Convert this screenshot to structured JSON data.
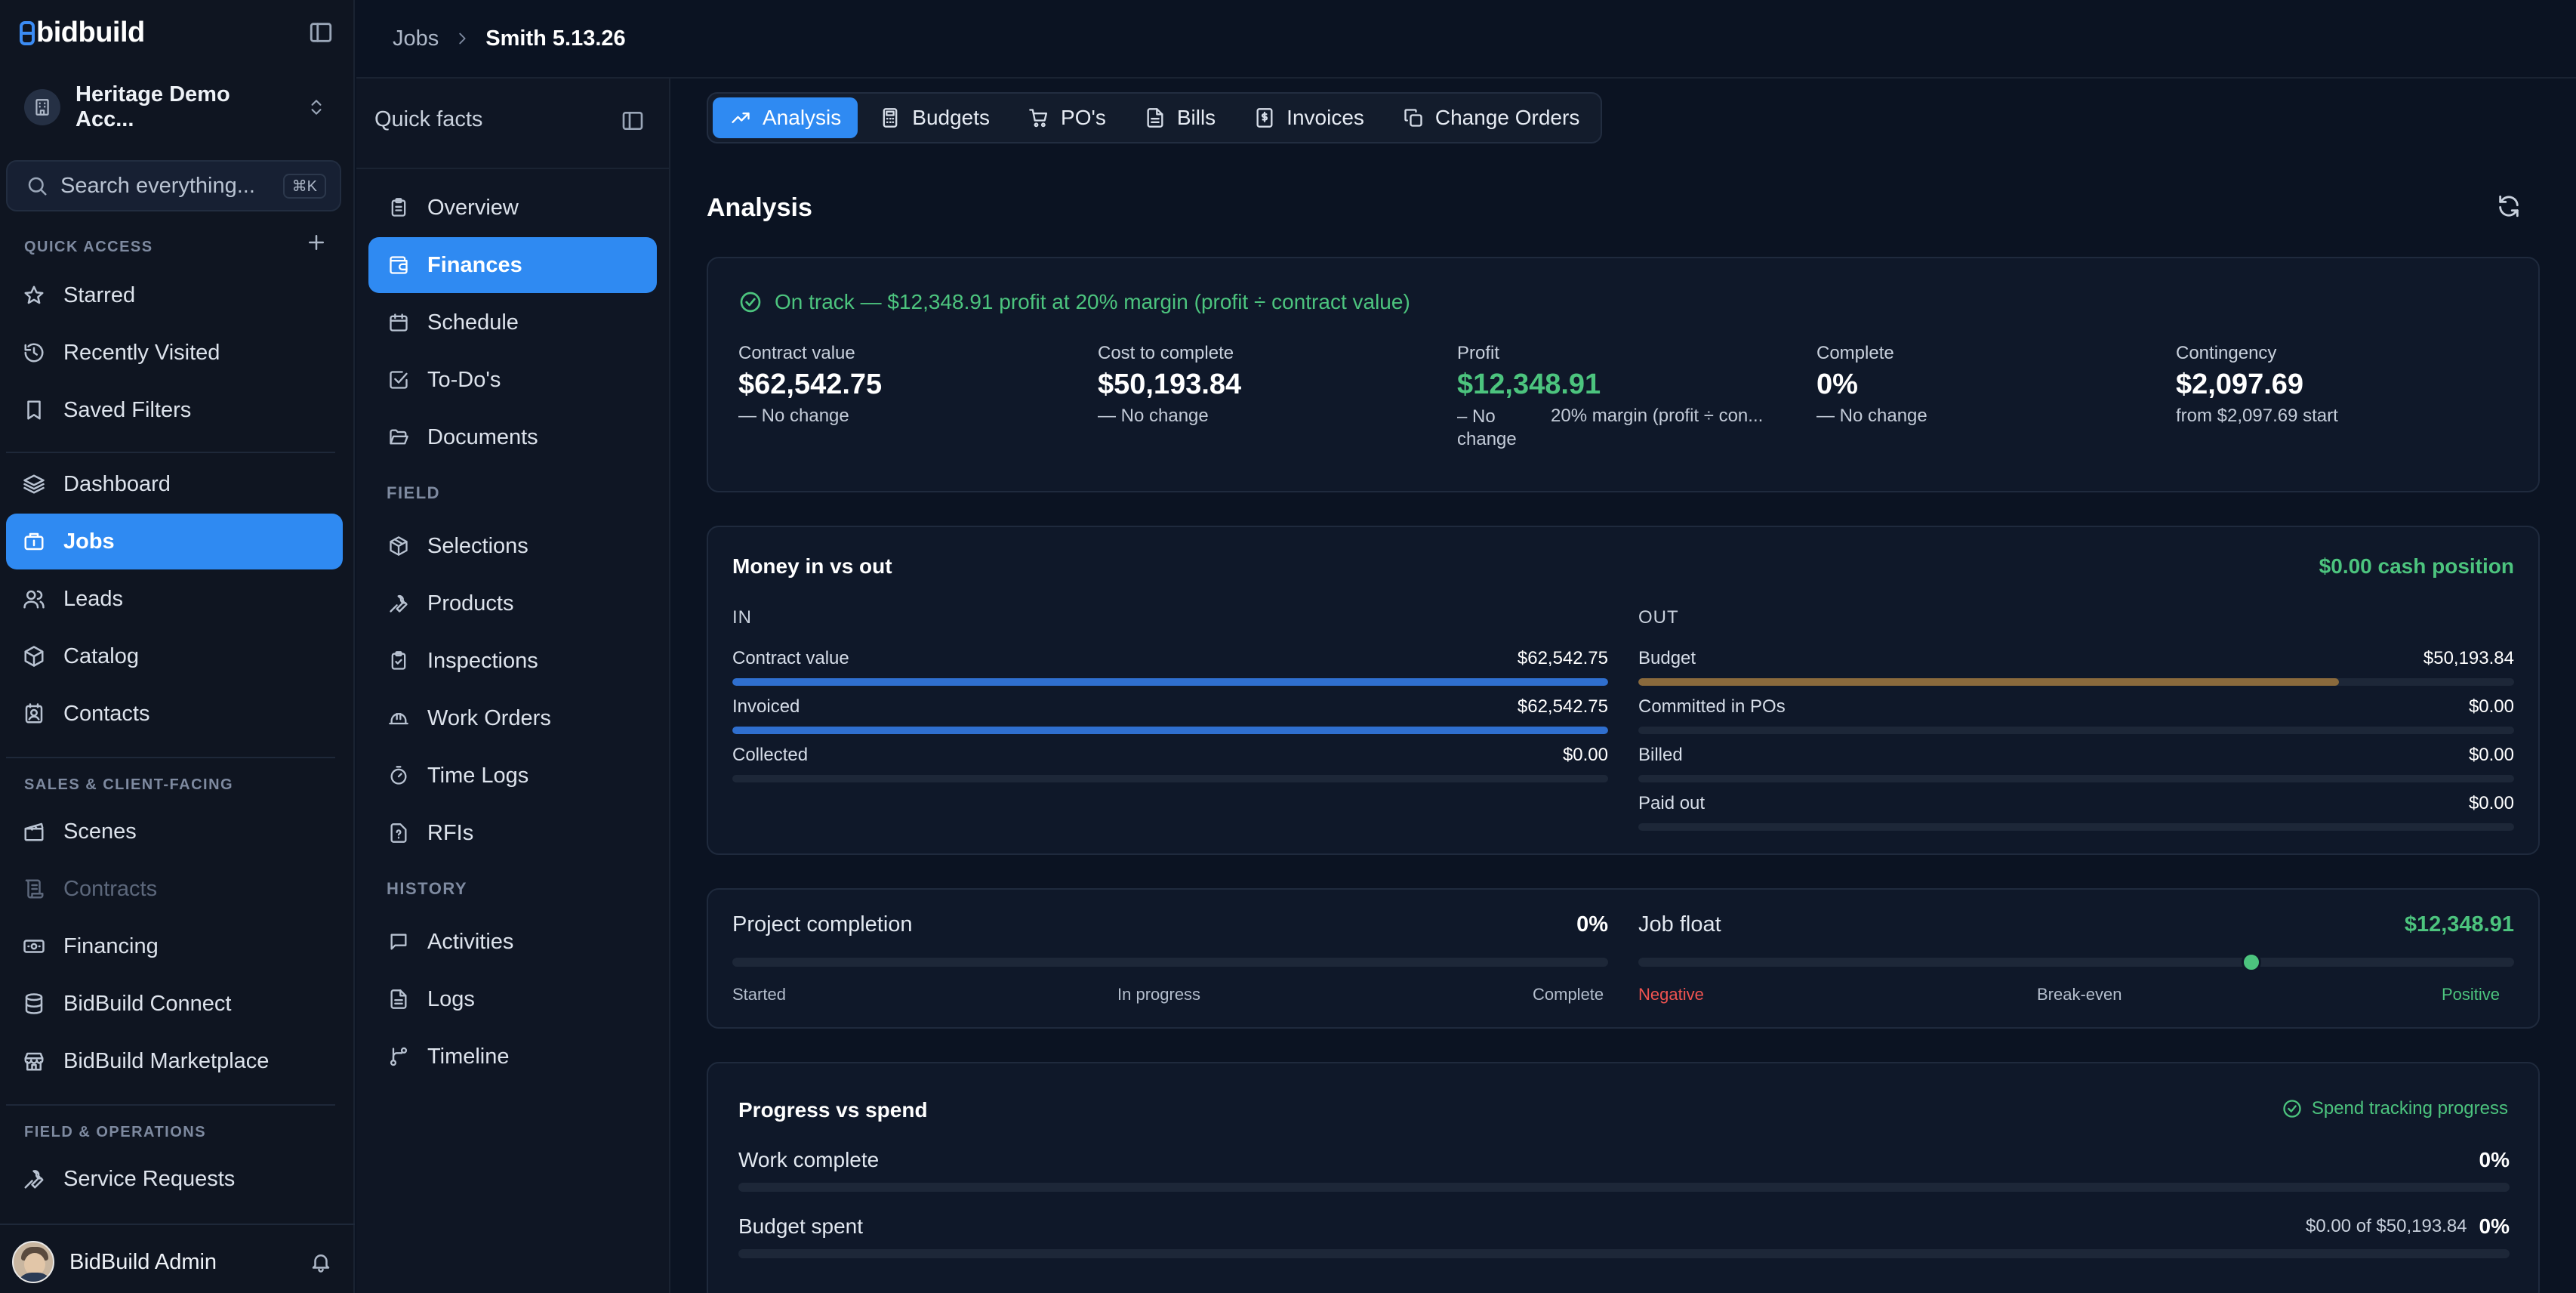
{
  "sidebar": {
    "logo": "bidbuild",
    "account_name": "Heritage Demo Acc...",
    "search_placeholder": "Search everything...",
    "search_shortcut": "⌘K",
    "sections": {
      "quick_access": "QUICK ACCESS",
      "sales": "SALES & CLIENT-FACING",
      "field_ops": "FIELD & OPERATIONS"
    },
    "items": [
      {
        "label": "Starred",
        "icon": "star-icon"
      },
      {
        "label": "Recently Visited",
        "icon": "history-icon"
      },
      {
        "label": "Saved Filters",
        "icon": "bookmark-icon"
      },
      {
        "label": "Dashboard",
        "icon": "layers-icon"
      },
      {
        "label": "Jobs",
        "icon": "briefcase-icon"
      },
      {
        "label": "Leads",
        "icon": "users-icon"
      },
      {
        "label": "Catalog",
        "icon": "box-icon"
      },
      {
        "label": "Contacts",
        "icon": "contact-icon"
      },
      {
        "label": "Scenes",
        "icon": "clapperboard-icon"
      },
      {
        "label": "Contracts",
        "icon": "scroll-icon"
      },
      {
        "label": "Financing",
        "icon": "banknote-icon"
      },
      {
        "label": "BidBuild Connect",
        "icon": "database-icon"
      },
      {
        "label": "BidBuild Marketplace",
        "icon": "store-icon"
      },
      {
        "label": "Service Requests",
        "icon": "wrench-icon"
      }
    ],
    "user_name": "BidBuild Admin"
  },
  "breadcrumb": {
    "parent": "Jobs",
    "current": "Smith 5.13.26"
  },
  "subnav": {
    "title": "Quick facts",
    "items": [
      "Overview",
      "Finances",
      "Schedule",
      "To-Do's",
      "Documents"
    ],
    "field_label": "FIELD",
    "field_items": [
      "Selections",
      "Products",
      "Inspections",
      "Work Orders",
      "Time Logs",
      "RFIs"
    ],
    "history_label": "HISTORY",
    "history_items": [
      "Activities",
      "Logs",
      "Timeline"
    ]
  },
  "tabs": [
    "Analysis",
    "Budgets",
    "PO's",
    "Bills",
    "Invoices",
    "Change Orders"
  ],
  "page_title": "Analysis",
  "status_text": "On track — $12,348.91 profit at 20% margin (profit ÷ contract value)",
  "metrics": [
    {
      "label": "Contract value",
      "value": "$62,542.75",
      "sub": "— No change"
    },
    {
      "label": "Cost to complete",
      "value": "$50,193.84",
      "sub": "— No change"
    },
    {
      "label": "Profit",
      "value": "$12,348.91",
      "sub": "– No change",
      "sub2": "20% margin (profit ÷ con..."
    },
    {
      "label": "Complete",
      "value": "0%",
      "sub": "— No change"
    },
    {
      "label": "Contingency",
      "value": "$2,097.69",
      "sub": "from $2,097.69 start"
    }
  ],
  "money": {
    "title": "Money in vs out",
    "cash_position": "$0.00 cash position",
    "in_label": "IN",
    "out_label": "OUT",
    "in_rows": [
      {
        "label": "Contract value",
        "amount": "$62,542.75",
        "fill": 1.0
      },
      {
        "label": "Invoiced",
        "amount": "$62,542.75",
        "fill": 1.0
      },
      {
        "label": "Collected",
        "amount": "$0.00",
        "fill": 0
      }
    ],
    "out_rows": [
      {
        "label": "Budget",
        "amount": "$50,193.84",
        "fill": 0.8
      },
      {
        "label": "Committed in POs",
        "amount": "$0.00",
        "fill": 0
      },
      {
        "label": "Billed",
        "amount": "$0.00",
        "fill": 0
      },
      {
        "label": "Paid out",
        "amount": "$0.00",
        "fill": 0
      }
    ],
    "colors": {
      "in": "#2f6fcf",
      "budget": "#8a6a3c"
    }
  },
  "completion": {
    "label": "Project completion",
    "value": "0%",
    "fill": 0,
    "ticks": [
      "Started",
      "In progress",
      "Complete"
    ]
  },
  "float": {
    "label": "Job float",
    "value": "$12,348.91",
    "position": 0.7,
    "ticks": [
      "Negative",
      "Break-even",
      "Positive"
    ]
  },
  "progress": {
    "title": "Progress vs spend",
    "status": "Spend tracking progress",
    "rows": [
      {
        "label": "Work complete",
        "detail": "",
        "pct": "0%"
      },
      {
        "label": "Budget spent",
        "detail": "$0.00 of $50,193.84",
        "pct": "0%"
      }
    ]
  }
}
